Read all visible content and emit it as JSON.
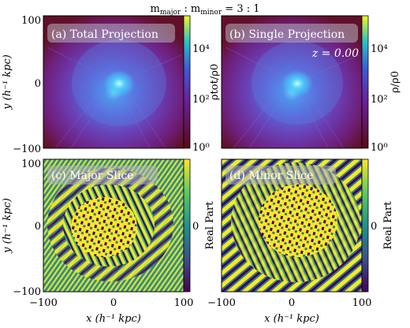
{
  "suptitle": "m major : m minor = 3 : 1",
  "suptitle_parts": {
    "m": "m",
    "major": "major",
    "sep": " : ",
    "minor": "minor",
    "ratio": " = 3 : 1"
  },
  "panels": [
    {
      "label": "(a) Total Projection",
      "type": "projection"
    },
    {
      "label": "(b) Single Projection",
      "type": "projection",
      "annotation": "z = 0.00"
    },
    {
      "label": "(c) Major Slice",
      "type": "slice"
    },
    {
      "label": "(d) Minor Slice",
      "type": "slice"
    }
  ],
  "axes": {
    "x_ticks": [
      "−100",
      "0",
      "100"
    ],
    "y_ticks": [
      "100",
      "0",
      "−100"
    ],
    "xlabel": "x (h⁻¹ kpc)",
    "ylabel": "y (h⁻¹ kpc)",
    "range": [
      -100,
      100
    ]
  },
  "colorbars": {
    "a": {
      "label": "ρtot/ρ0",
      "ticks": [
        "10⁴",
        "10²",
        "10⁰"
      ],
      "range": [
        1,
        100000
      ],
      "scale": "log"
    },
    "b": {
      "label": "ρ/ρ0",
      "ticks": [
        "10⁴",
        "10²",
        "10⁰"
      ],
      "range": [
        1,
        100000
      ],
      "scale": "log"
    },
    "c": {
      "label": "Real Part",
      "ticks": [
        "0"
      ]
    },
    "d": {
      "label": "Real Part",
      "ticks": [
        "0"
      ]
    }
  },
  "colors": {
    "colormap": "plasma",
    "low": "#0d0887",
    "high": "#f0f921",
    "slice_mid": "#21918c"
  }
}
